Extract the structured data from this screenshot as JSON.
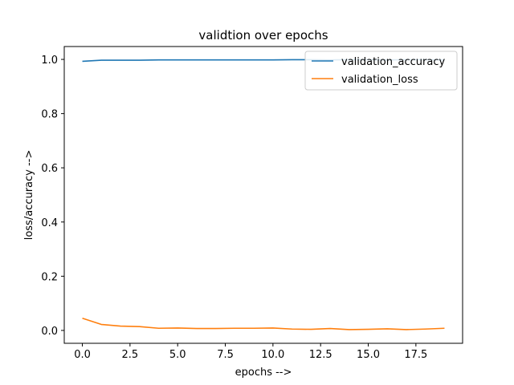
{
  "chart_data": {
    "type": "line",
    "title": "validtion over epochs",
    "xlabel": "epochs -->",
    "ylabel": "loss/accuracy -->",
    "xlim": [
      -0.95,
      19.95
    ],
    "ylim": [
      -0.0475,
      1.0475
    ],
    "x_ticks": [
      0.0,
      2.5,
      5.0,
      7.5,
      10.0,
      12.5,
      15.0,
      17.5
    ],
    "x_tick_labels": [
      "0.0",
      "2.5",
      "5.0",
      "7.5",
      "10.0",
      "12.5",
      "15.0",
      "17.5"
    ],
    "y_ticks": [
      0.0,
      0.2,
      0.4,
      0.6,
      0.8,
      1.0
    ],
    "y_tick_labels": [
      "0.0",
      "0.2",
      "0.4",
      "0.6",
      "0.8",
      "1.0"
    ],
    "grid": false,
    "legend_position": "upper-right",
    "x": [
      0,
      1,
      2,
      3,
      4,
      5,
      6,
      7,
      8,
      9,
      10,
      11,
      12,
      13,
      14,
      15,
      16,
      17,
      18,
      19
    ],
    "series": [
      {
        "name": "validation_accuracy",
        "color": "#1f77b4",
        "values": [
          0.993,
          0.997,
          0.997,
          0.997,
          0.998,
          0.998,
          0.998,
          0.998,
          0.998,
          0.998,
          0.998,
          0.999,
          0.999,
          0.998,
          0.999,
          0.999,
          0.998,
          0.999,
          0.999,
          0.998
        ]
      },
      {
        "name": "validation_loss",
        "color": "#ff7f0e",
        "values": [
          0.045,
          0.022,
          0.016,
          0.014,
          0.008,
          0.009,
          0.007,
          0.007,
          0.008,
          0.008,
          0.009,
          0.005,
          0.004,
          0.007,
          0.003,
          0.004,
          0.006,
          0.003,
          0.005,
          0.008
        ]
      }
    ]
  }
}
